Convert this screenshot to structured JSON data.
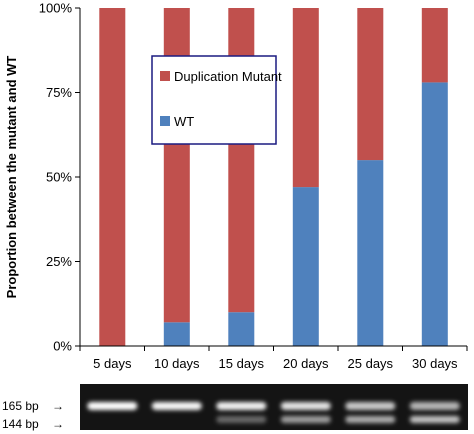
{
  "chart_data": {
    "type": "bar",
    "stacked": true,
    "normalized": true,
    "categories": [
      "5 days",
      "10 days",
      "15 days",
      "20 days",
      "25 days",
      "30 days"
    ],
    "series": [
      {
        "name": "WT",
        "color": "#4f81bd",
        "values": [
          0,
          7,
          10,
          47,
          55,
          78
        ]
      },
      {
        "name": "Duplication Mutant",
        "color": "#c0504d",
        "values": [
          100,
          93,
          90,
          53,
          45,
          22
        ]
      }
    ],
    "ylabel": "Proportion between the mutant and WT",
    "ylim": [
      0,
      100
    ],
    "yticks": [
      "0%",
      "25%",
      "50%",
      "75%",
      "100%"
    ],
    "ytick_values": [
      0,
      25,
      50,
      75,
      100
    ],
    "grid": false,
    "legend_position": "upper-left-center",
    "legend_entries": [
      {
        "label": "Duplication Mutant",
        "color": "#c0504d"
      },
      {
        "label": "WT",
        "color": "#4f81bd"
      }
    ]
  },
  "gel": {
    "band_labels": [
      "165 bp",
      "144 bp"
    ],
    "arrow_glyph": "→",
    "lanes": 6,
    "upper_band_intensity": [
      1.0,
      0.95,
      0.9,
      0.8,
      0.6,
      0.45
    ],
    "lower_band_intensity": [
      0,
      0.05,
      0.1,
      0.45,
      0.55,
      0.7
    ]
  }
}
